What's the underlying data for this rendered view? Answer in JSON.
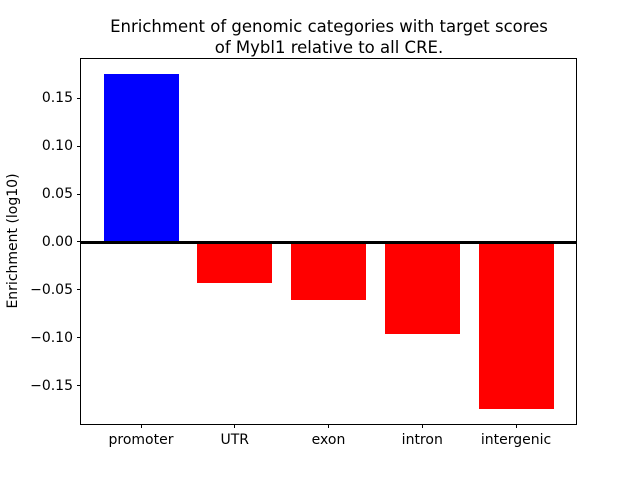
{
  "figure": {
    "title_lines": [
      "Enrichment of genomic categories with target scores",
      "of Mybl1 relative to all CRE."
    ]
  },
  "chart_data": {
    "type": "bar",
    "title": "Enrichment of genomic categories with target scores\nof Mybl1 relative to all CRE.",
    "xlabel": "",
    "ylabel": "Enrichment (log10)",
    "categories": [
      "promoter",
      "UTR",
      "exon",
      "intron",
      "intergenic"
    ],
    "values": [
      0.175,
      -0.043,
      -0.061,
      -0.096,
      -0.174
    ],
    "bar_colors": [
      "#0000ff",
      "#ff0000",
      "#ff0000",
      "#ff0000",
      "#ff0000"
    ],
    "yticks": [
      0.15,
      0.1,
      0.05,
      0.0,
      -0.05,
      -0.1,
      -0.15
    ],
    "ytick_labels": [
      "0.15",
      "0.10",
      "0.05",
      "0.00",
      "−0.05",
      "−0.10",
      "−0.15"
    ],
    "ylim": [
      -0.19,
      0.191
    ],
    "xlim": [
      -0.64,
      4.64
    ],
    "bar_width": 0.8,
    "zero_line": true,
    "grid": false,
    "legend": null,
    "colors": {
      "positive": "#0000ff",
      "negative": "#ff0000",
      "axis": "#000000",
      "background": "#ffffff"
    }
  }
}
